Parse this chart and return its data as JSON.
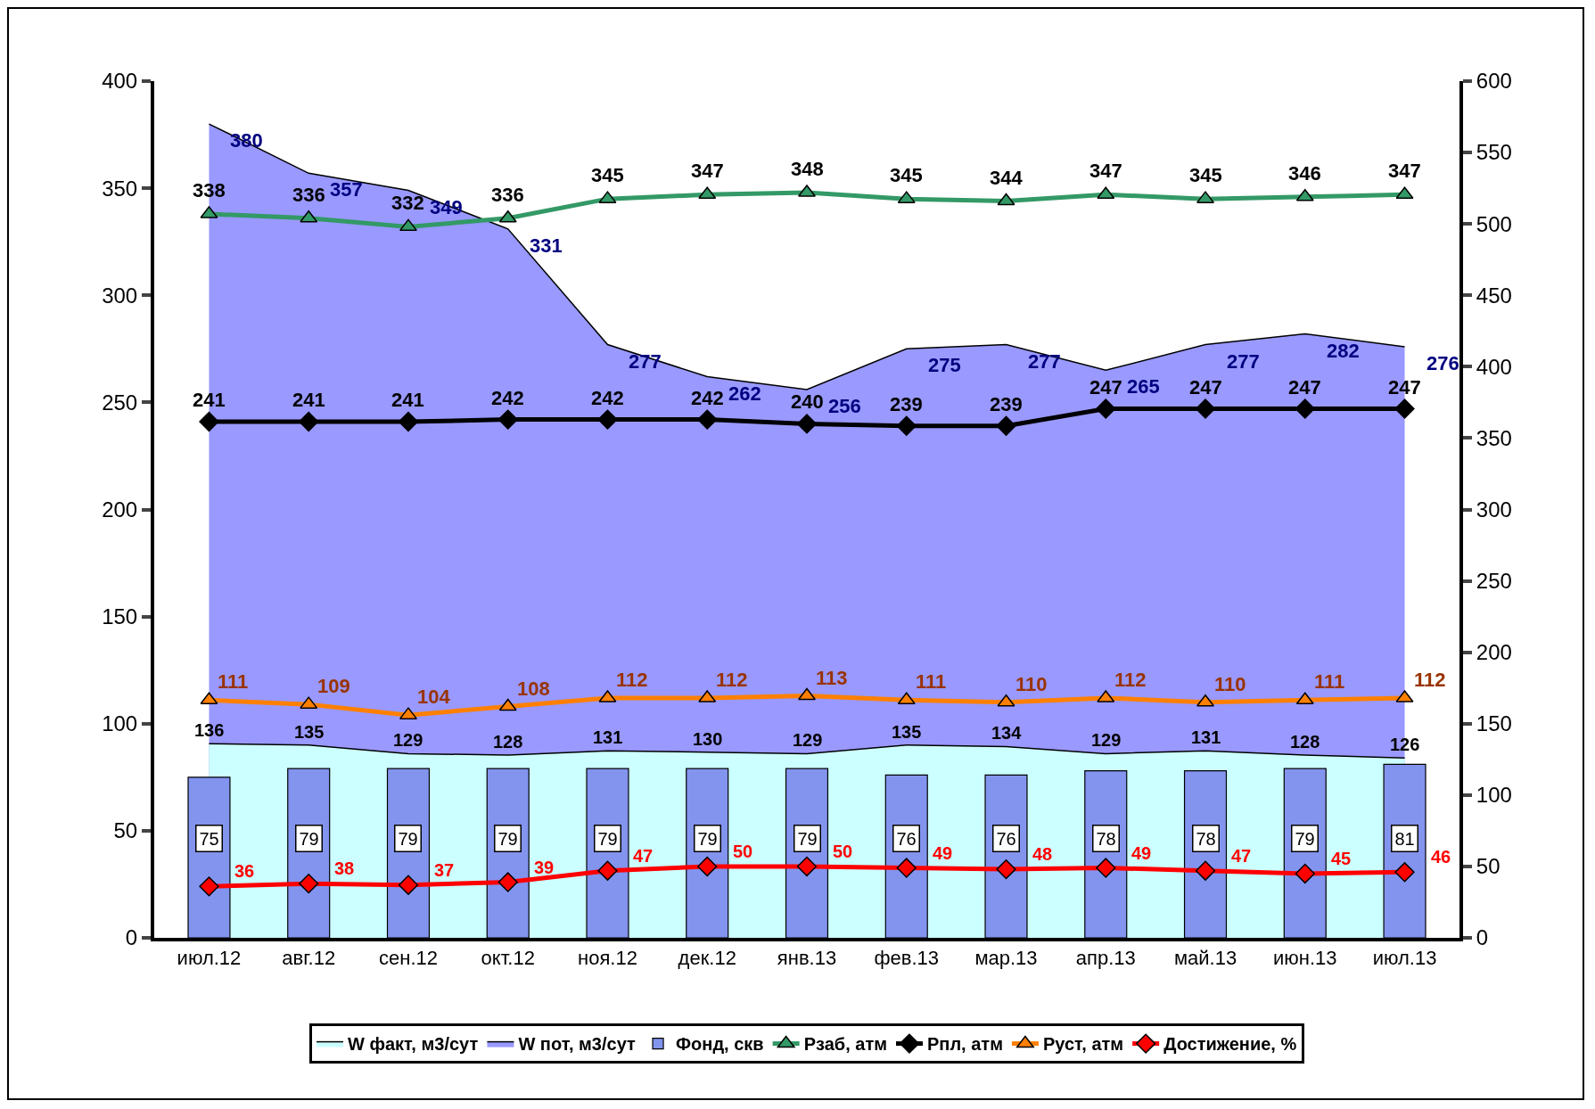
{
  "chart_data": {
    "type": "line",
    "categories": [
      "июл.12",
      "авг.12",
      "сен.12",
      "окт.12",
      "ноя.12",
      "дек.12",
      "янв.13",
      "фев.13",
      "мар.13",
      "апр.13",
      "май.13",
      "июн.13",
      "июл.13"
    ],
    "ylim": [
      0,
      400
    ],
    "yticks": [
      0,
      50,
      100,
      150,
      200,
      250,
      300,
      350,
      400
    ],
    "y2lim": [
      0,
      600
    ],
    "y2ticks": [
      0,
      50,
      100,
      150,
      200,
      250,
      300,
      350,
      400,
      450,
      500,
      550,
      600
    ],
    "data_labels": true,
    "grid": false,
    "legend": "bottom",
    "series": [
      {
        "name": "W факт, м3/сут",
        "type": "area",
        "axis": "y2",
        "color": "#ccffff",
        "values": [
          136,
          135,
          129,
          128,
          131,
          130,
          129,
          135,
          134,
          129,
          131,
          128,
          126
        ]
      },
      {
        "name": "W пот, м3/сут",
        "type": "area",
        "color": "#9999ff",
        "values": [
          380,
          357,
          349,
          331,
          277,
          262,
          256,
          275,
          277,
          265,
          277,
          282,
          276
        ]
      },
      {
        "name": "Фонд, скв",
        "type": "bar",
        "color": "#8394ee",
        "values": [
          75,
          79,
          79,
          79,
          79,
          79,
          79,
          76,
          76,
          78,
          78,
          79,
          81
        ]
      },
      {
        "name": "Рзаб, атм",
        "color": "#339966",
        "marker": "triangle",
        "values": [
          338,
          336,
          332,
          336,
          345,
          347,
          348,
          345,
          344,
          347,
          345,
          346,
          347
        ]
      },
      {
        "name": "Рпл, атм",
        "color": "#000000",
        "marker": "diamond",
        "values": [
          241,
          241,
          241,
          242,
          242,
          242,
          240,
          239,
          239,
          247,
          247,
          247,
          247
        ]
      },
      {
        "name": "Руст, атм",
        "color": "#ff8000",
        "marker": "triangle",
        "values": [
          111,
          109,
          104,
          108,
          112,
          112,
          113,
          111,
          110,
          112,
          110,
          111,
          112
        ]
      },
      {
        "name": "Достижение, %",
        "axis": "y2",
        "color": "#ff0000",
        "marker": "diamond",
        "values": [
          36,
          38,
          37,
          39,
          47,
          50,
          50,
          49,
          48,
          49,
          47,
          45,
          46
        ]
      }
    ]
  }
}
